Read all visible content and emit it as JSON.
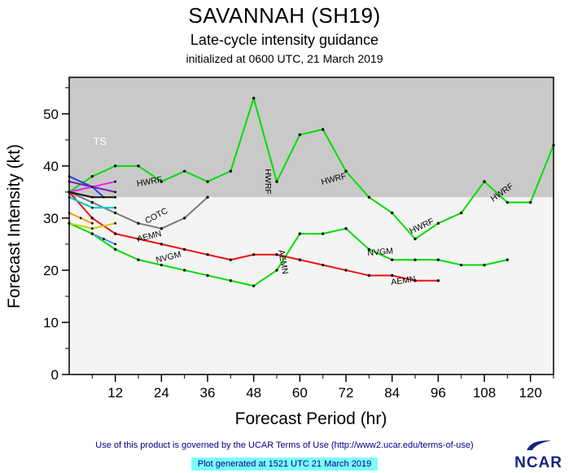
{
  "header": {
    "title": "SAVANNAH (SH19)",
    "subtitle": "Late-cycle intensity guidance",
    "initialized": "initialized at 0600 UTC, 21 March 2019"
  },
  "footer": {
    "terms": "Use of this product is governed by the UCAR Terms of Use (http://www2.ucar.edu/terms-of-use)",
    "generated": "Plot generated at 1521 UTC  21 March 2019",
    "logo_text": "NCAR"
  },
  "chart_data": {
    "type": "line",
    "title": "SAVANNAH (SH19)",
    "subtitle": "Late-cycle intensity guidance",
    "initialized": "initialized at 0600 UTC, 21 March 2019",
    "xlabel": "Forecast Period (hr)",
    "ylabel": "Forecast Intensity (kt)",
    "xlim": [
      0,
      126
    ],
    "ylim": [
      0,
      57
    ],
    "x_major_ticks": [
      12,
      24,
      36,
      48,
      60,
      72,
      84,
      96,
      108,
      120
    ],
    "x_minor_step": 6,
    "y_major_ticks": [
      0,
      10,
      20,
      30,
      40,
      50
    ],
    "y_minor_step": 5,
    "ts_threshold": 34,
    "ts_region_label": "TS",
    "colors": {
      "ts_region": "#c9c9c9",
      "plot_bg": "#f4f4f4",
      "axis": "#000000",
      "marker": "#000000"
    },
    "series": [
      {
        "name": "HWRF",
        "color": "#00dd00",
        "x": [
          0,
          6,
          12,
          18,
          24,
          30,
          36,
          42,
          48,
          54,
          60,
          66,
          72,
          78,
          84,
          90,
          96,
          102,
          108,
          114,
          120,
          126
        ],
        "values": [
          35,
          38,
          40,
          40,
          37,
          39,
          37,
          39,
          53,
          37,
          46,
          47,
          39,
          34,
          31,
          26,
          29,
          31,
          37,
          33,
          33,
          44
        ]
      },
      {
        "name": "NVGM",
        "color": "#00dd00",
        "x": [
          0,
          6,
          12,
          18,
          24,
          30,
          36,
          42,
          48,
          54,
          60,
          66,
          72,
          78,
          84,
          90,
          96,
          102,
          108,
          114
        ],
        "values": [
          29,
          27,
          24,
          22,
          21,
          20,
          19,
          18,
          17,
          20,
          27,
          27,
          28,
          24,
          22,
          22,
          22,
          21,
          21,
          22
        ]
      },
      {
        "name": "AEMN",
        "color": "#ee1111",
        "x": [
          0,
          6,
          12,
          18,
          24,
          30,
          36,
          42,
          48,
          54,
          60,
          66,
          72,
          78,
          84,
          90,
          96
        ],
        "values": [
          35,
          30,
          27,
          26,
          25,
          24,
          23,
          22,
          23,
          23,
          22,
          21,
          20,
          19,
          19,
          18,
          18
        ]
      },
      {
        "name": "COTC",
        "color": "#7a7a7a",
        "x": [
          0,
          6,
          12,
          18,
          24,
          30,
          36
        ],
        "values": [
          35,
          33,
          31,
          29,
          28,
          30,
          34
        ]
      }
    ],
    "short_aids": [
      {
        "color": "#2244dd",
        "x": [
          0,
          6,
          9
        ],
        "values": [
          38,
          36,
          34
        ]
      },
      {
        "color": "#4499ff",
        "x": [
          6,
          9,
          12
        ],
        "values": [
          27,
          26,
          25
        ]
      },
      {
        "color": "#ee22ee",
        "x": [
          0,
          6,
          12
        ],
        "values": [
          35,
          36,
          37
        ]
      },
      {
        "color": "#7722bb",
        "x": [
          0,
          6,
          12
        ],
        "values": [
          37,
          36,
          35
        ]
      },
      {
        "color": "#00cccc",
        "x": [
          0,
          6,
          12
        ],
        "values": [
          34,
          32,
          32
        ]
      },
      {
        "color": "#ff9900",
        "x": [
          0,
          3,
          6
        ],
        "values": [
          31,
          30,
          29
        ]
      },
      {
        "color": "#cccc00",
        "x": [
          0,
          6,
          12
        ],
        "values": [
          29,
          28,
          29
        ]
      },
      {
        "color": "#111111",
        "x": [
          0,
          6,
          12
        ],
        "values": [
          35,
          34,
          34
        ]
      }
    ],
    "annotations": [
      {
        "text": "TS",
        "x": 8,
        "y": 44,
        "rot": 0,
        "color": "#ffffff",
        "size": 13
      },
      {
        "text": "HWRF",
        "x": 21,
        "y": 36.5,
        "rot": -10,
        "color": "#000000",
        "size": 10.5
      },
      {
        "text": "COTC",
        "x": 23,
        "y": 30,
        "rot": -28,
        "color": "#000000",
        "size": 10.5
      },
      {
        "text": "AEMN",
        "x": 21,
        "y": 26,
        "rot": -14,
        "color": "#000000",
        "size": 10.5
      },
      {
        "text": "NVGM",
        "x": 26,
        "y": 22,
        "rot": -14,
        "color": "#000000",
        "size": 10.5
      },
      {
        "text": "HWRF",
        "x": 51,
        "y": 37,
        "rot": 90,
        "color": "#000000",
        "size": 10.5
      },
      {
        "text": "AEMN",
        "x": 55,
        "y": 21.5,
        "rot": 80,
        "color": "#000000",
        "size": 10.5
      },
      {
        "text": "HWRF",
        "x": 69,
        "y": 37,
        "rot": -15,
        "color": "#000000",
        "size": 10.5
      },
      {
        "text": "NVGM",
        "x": 81,
        "y": 23,
        "rot": -5,
        "color": "#000000",
        "size": 10.5
      },
      {
        "text": "HWRF",
        "x": 92,
        "y": 28,
        "rot": -25,
        "color": "#000000",
        "size": 10.5
      },
      {
        "text": "AEMN",
        "x": 87,
        "y": 17.5,
        "rot": -8,
        "color": "#000000",
        "size": 10.5
      },
      {
        "text": "HWRF",
        "x": 113,
        "y": 34.5,
        "rot": -35,
        "color": "#000000",
        "size": 10.5
      }
    ]
  }
}
